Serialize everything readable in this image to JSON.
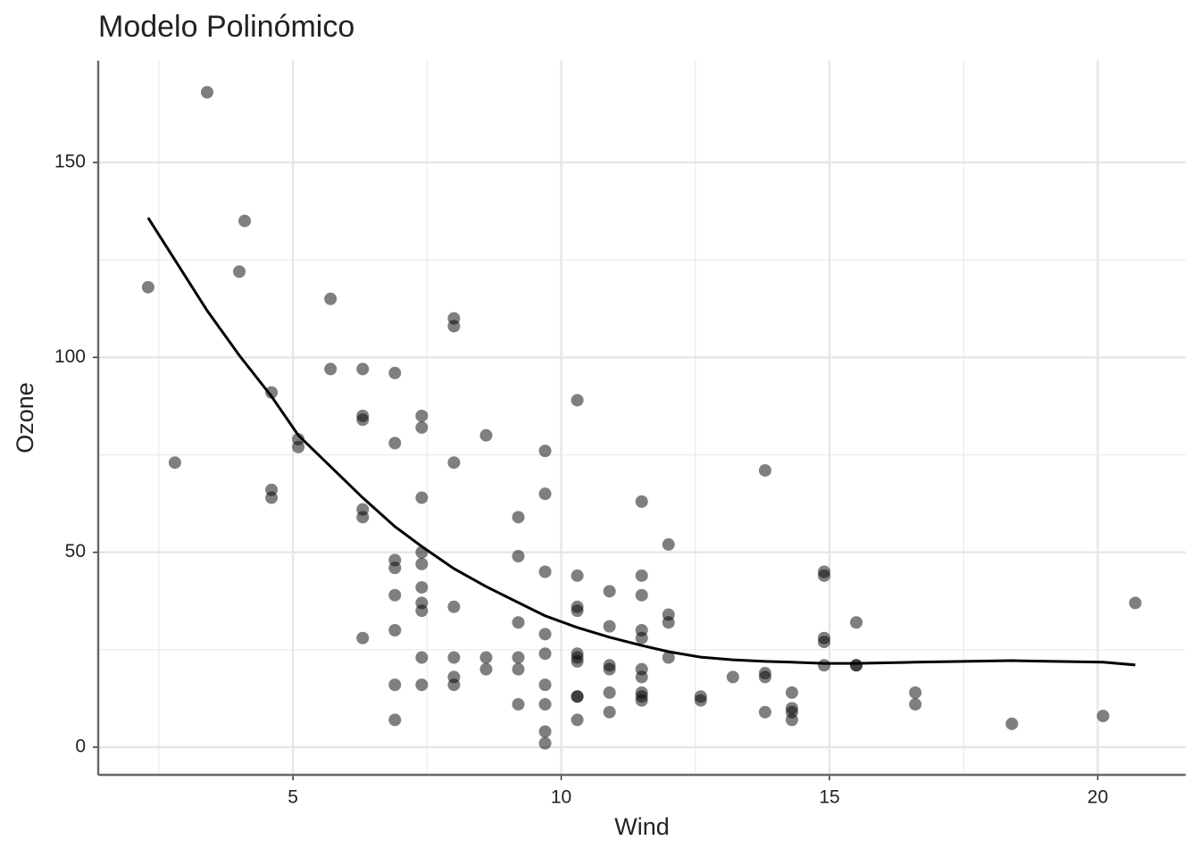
{
  "chart_data": {
    "type": "scatter",
    "title": "Modelo Polinómico",
    "x_label": "Wind",
    "y_label": "Ozone",
    "xlim": [
      1.37,
      21.64
    ],
    "ylim": [
      -7.1,
      176.1
    ],
    "xticks": [
      5,
      10,
      15,
      20
    ],
    "yticks": [
      0,
      50,
      100,
      150
    ],
    "xminor": [
      2.5,
      7.5,
      12.5,
      17.5
    ],
    "yminor": [
      25,
      75,
      125
    ],
    "grid": true,
    "series": [
      {
        "type": "scatter",
        "color": "#000000",
        "opacity": 0.5,
        "x": [
          3.4,
          2.3,
          2.8,
          4.1,
          4.0,
          4.6,
          4.6,
          4.6,
          5.1,
          5.1,
          5.7,
          5.7,
          6.3,
          6.3,
          6.3,
          6.3,
          6.3,
          6.3,
          6.9,
          6.9,
          6.9,
          6.9,
          6.9,
          6.9,
          6.9,
          6.9,
          7.4,
          7.4,
          7.4,
          7.4,
          7.4,
          7.4,
          7.4,
          7.4,
          7.4,
          7.4,
          8.0,
          8.0,
          8.0,
          8.0,
          8.0,
          8.0,
          8.0,
          8.6,
          8.6,
          8.6,
          9.2,
          9.2,
          9.2,
          9.2,
          9.2,
          9.2,
          9.7,
          9.7,
          9.7,
          9.7,
          9.7,
          9.7,
          9.7,
          9.7,
          9.7,
          10.3,
          10.3,
          10.3,
          10.3,
          10.3,
          10.3,
          10.3,
          10.3,
          10.3,
          10.3,
          10.9,
          10.9,
          10.9,
          10.9,
          10.9,
          10.9,
          11.5,
          11.5,
          11.5,
          11.5,
          11.5,
          11.5,
          11.5,
          11.5,
          11.5,
          11.5,
          12.0,
          12.0,
          12.0,
          12.0,
          12.6,
          12.6,
          13.2,
          13.8,
          13.8,
          13.8,
          13.8,
          14.3,
          14.3,
          14.3,
          14.3,
          14.9,
          14.9,
          14.9,
          14.9,
          14.9,
          15.5,
          15.5,
          15.5,
          16.6,
          16.6,
          18.4,
          20.1,
          20.7
        ],
        "values": [
          168,
          118,
          73,
          135,
          122,
          91,
          66,
          64,
          79,
          77,
          115,
          97,
          97,
          85,
          84,
          61,
          59,
          28,
          96,
          78,
          48,
          46,
          39,
          30,
          16,
          7,
          85,
          82,
          64,
          50,
          47,
          41,
          37,
          35,
          23,
          16,
          110,
          108,
          73,
          36,
          23,
          18,
          16,
          80,
          23,
          20,
          59,
          49,
          32,
          23,
          20,
          11,
          76,
          65,
          45,
          29,
          24,
          16,
          11,
          4,
          1,
          89,
          44,
          36,
          35,
          24,
          23,
          22,
          13,
          13,
          7,
          40,
          31,
          21,
          20,
          14,
          9,
          63,
          44,
          39,
          30,
          28,
          20,
          18,
          14,
          13,
          12,
          52,
          34,
          32,
          23,
          13,
          12,
          18,
          71,
          19,
          18,
          9,
          14,
          10,
          9,
          7,
          45,
          44,
          28,
          27,
          21,
          32,
          21,
          21,
          14,
          11,
          6,
          8,
          37
        ]
      },
      {
        "type": "line",
        "color": "#000000",
        "x": [
          2.3,
          3.4,
          4.0,
          4.6,
          5.1,
          5.7,
          6.3,
          6.9,
          7.4,
          8.0,
          8.6,
          9.2,
          9.7,
          10.3,
          10.9,
          11.5,
          12.0,
          12.6,
          13.2,
          13.8,
          14.3,
          14.9,
          15.5,
          16.6,
          18.4,
          20.1,
          20.7
        ],
        "values": [
          135.8,
          112,
          100.5,
          90,
          80,
          72,
          64,
          56.6,
          51.5,
          45.8,
          41.2,
          37.1,
          33.7,
          30.7,
          28.2,
          26.1,
          24.5,
          23.1,
          22.4,
          22,
          21.8,
          21.5,
          21.5,
          21.8,
          22.2,
          21.8,
          21.1
        ]
      }
    ]
  }
}
